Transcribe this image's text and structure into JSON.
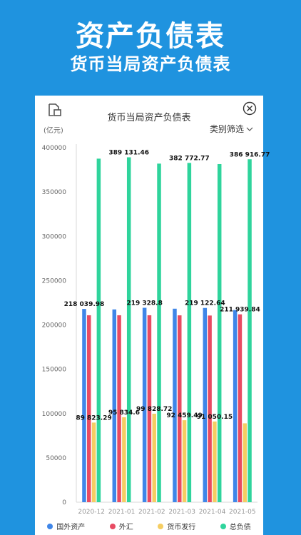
{
  "hero": {
    "title": "资产负债表",
    "subtitle": "货币当局资产负债表"
  },
  "icons": {
    "export": "export-document-icon",
    "close": "close-circle-icon",
    "filter_chevron": "chevron-down-icon"
  },
  "card": {
    "filter_label": "类别筛选"
  },
  "colors": {
    "background": "#1f93df",
    "国外资产": "#3f86e8",
    "外汇": "#e84b63",
    "货币发行": "#f5cd62",
    "总负债": "#2fd49c"
  },
  "chart_data": {
    "type": "bar",
    "title": "货币当局资产负债表",
    "ylabel": "(亿元)",
    "xlabel": "",
    "categories": [
      "2020-12",
      "2021-01",
      "2021-02",
      "2021-03",
      "2021-04",
      "2021-05"
    ],
    "yticks": [
      "0",
      "50000",
      "100000",
      "150000",
      "200000",
      "250000",
      "300000",
      "350000",
      "400000"
    ],
    "ylim": [
      0,
      400000
    ],
    "grid": false,
    "legend_position": "bottom",
    "series": [
      {
        "name": "国外资产",
        "color": "#3f86e8",
        "values": [
          218039.98,
          217500,
          219328.8,
          218300,
          219122.64,
          216800
        ]
      },
      {
        "name": "外汇",
        "color": "#e84b63",
        "values": [
          210900,
          210900,
          210900,
          210800,
          210600,
          211939.84
        ]
      },
      {
        "name": "货币发行",
        "color": "#f5cd62",
        "values": [
          89823.29,
          95834.6,
          99828.72,
          92459.49,
          91050.15,
          89000
        ]
      },
      {
        "name": "总负债",
        "color": "#2fd49c",
        "values": [
          387600,
          389131.46,
          382000,
          382772.77,
          381500,
          386916.77
        ]
      }
    ],
    "data_labels": [
      {
        "series": "国外资产",
        "index": 0,
        "text": "218 039.98"
      },
      {
        "series": "国外资产",
        "index": 2,
        "text": "219 328.8"
      },
      {
        "series": "国外资产",
        "index": 4,
        "text": "219 122.64"
      },
      {
        "series": "外汇",
        "index": 5,
        "text": "211 939.84"
      },
      {
        "series": "货币发行",
        "index": 0,
        "text": "89 823.29"
      },
      {
        "series": "货币发行",
        "index": 1,
        "text": "95 834.6"
      },
      {
        "series": "货币发行",
        "index": 2,
        "text": "99 828.72"
      },
      {
        "series": "货币发行",
        "index": 3,
        "text": "92 459.49"
      },
      {
        "series": "货币发行",
        "index": 4,
        "text": "91 050.15"
      },
      {
        "series": "总负债",
        "index": 1,
        "text": "389 131.46"
      },
      {
        "series": "总负债",
        "index": 3,
        "text": "382 772.77"
      },
      {
        "series": "总负债",
        "index": 5,
        "text": "386 916.77"
      }
    ]
  }
}
